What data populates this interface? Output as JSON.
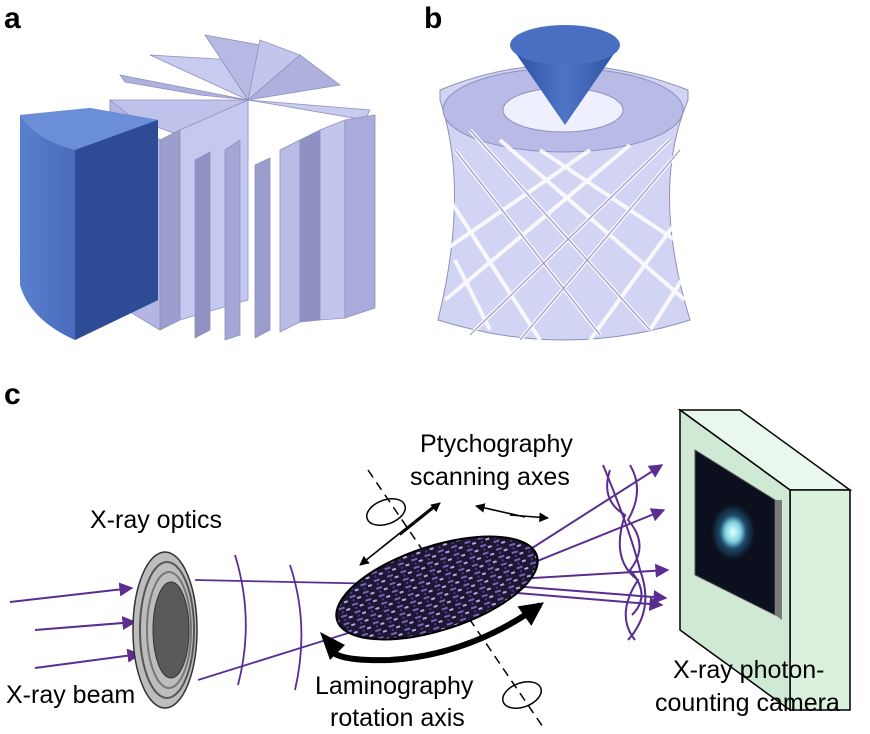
{
  "panels": {
    "a": "a",
    "b": "b",
    "c": "c"
  },
  "labels": {
    "ptychography_line1": "Ptychography",
    "ptychography_line2": "scanning axes",
    "xray_optics": "X-ray optics",
    "xray_beam": "X-ray beam",
    "laminography_line1": "Laminography",
    "laminography_line2": "rotation axis",
    "camera_line1": "X-ray photon-",
    "camera_line2": "counting camera"
  },
  "colors": {
    "solid_blue": "#3f63b3",
    "lamella": "#c3c6ec",
    "beam_purple": "#5a2d91",
    "camera_green": "#d9f1dd",
    "sample_dark": "#1b1530"
  }
}
